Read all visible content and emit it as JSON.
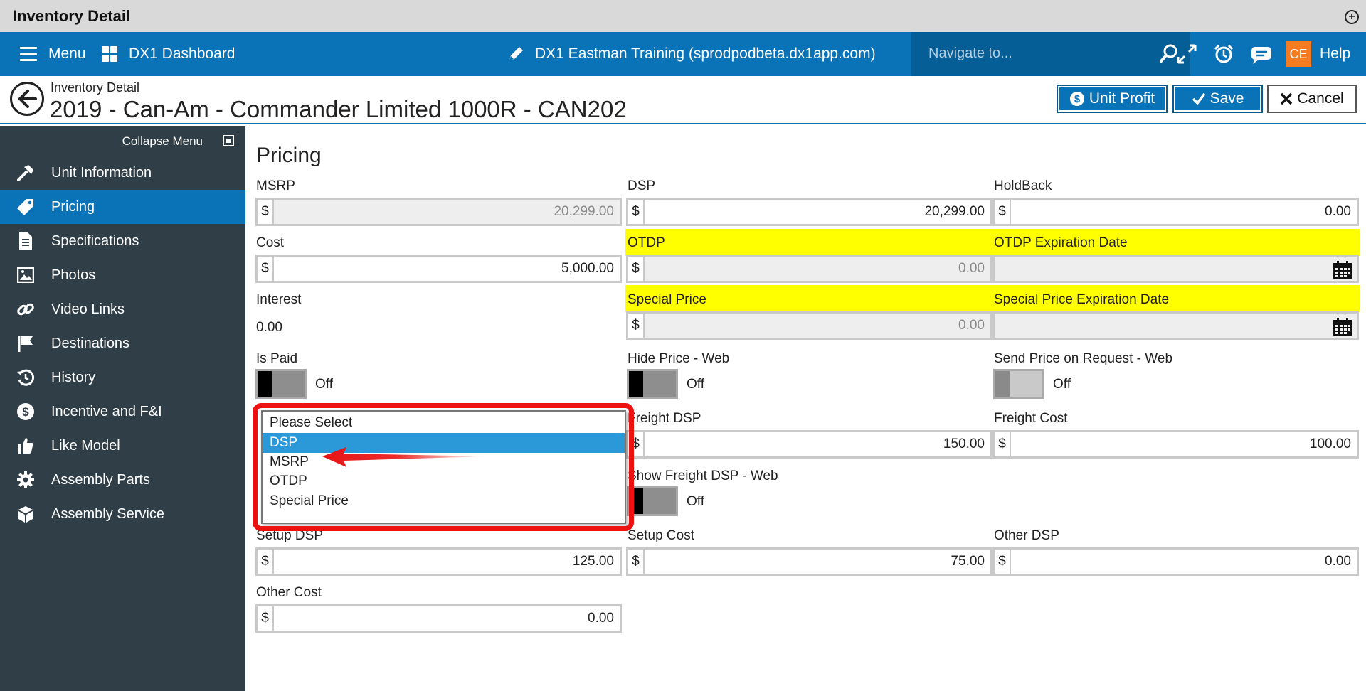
{
  "window": {
    "title": "Inventory Detail"
  },
  "topnav": {
    "menu_label": "Menu",
    "dashboard_label": "DX1 Dashboard",
    "site_label": "DX1 Eastman Training (sprodpodbeta.dx1app.com)",
    "search_placeholder": "Navigate to...",
    "user_initials": "CE",
    "help_label": "Help"
  },
  "header": {
    "breadcrumb": "Inventory Detail",
    "title": "2019 - Can-Am - Commander Limited 1000R - CAN202",
    "unit_profit_label": "Unit Profit",
    "save_label": "Save",
    "cancel_label": "Cancel"
  },
  "sidebar": {
    "collapse_label": "Collapse Menu",
    "items": [
      {
        "label": "Unit Information",
        "icon": "hammer-icon"
      },
      {
        "label": "Pricing",
        "icon": "tag-icon"
      },
      {
        "label": "Specifications",
        "icon": "document-icon"
      },
      {
        "label": "Photos",
        "icon": "image-icon"
      },
      {
        "label": "Video Links",
        "icon": "link-icon"
      },
      {
        "label": "Destinations",
        "icon": "flag-icon"
      },
      {
        "label": "History",
        "icon": "history-icon"
      },
      {
        "label": "Incentive and F&I",
        "icon": "dollar-circle-icon"
      },
      {
        "label": "Like Model",
        "icon": "thumbs-up-icon"
      },
      {
        "label": "Assembly Parts",
        "icon": "gear-icon"
      },
      {
        "label": "Assembly Service",
        "icon": "box-icon"
      }
    ],
    "active_index": 1
  },
  "pricing": {
    "section_title": "Pricing",
    "currency": "$",
    "msrp": {
      "label": "MSRP",
      "value": "20,299.00"
    },
    "dsp": {
      "label": "DSP",
      "value": "20,299.00"
    },
    "holdback": {
      "label": "HoldBack",
      "value": "0.00"
    },
    "cost": {
      "label": "Cost",
      "value": "5,000.00"
    },
    "otdp": {
      "label": "OTDP",
      "value": "0.00"
    },
    "otdp_expiration": {
      "label": "OTDP Expiration Date",
      "value": ""
    },
    "interest": {
      "label": "Interest",
      "value": "0.00"
    },
    "special_price": {
      "label": "Special Price",
      "value": "0.00"
    },
    "special_price_expiration": {
      "label": "Special Price Expiration Date",
      "value": ""
    },
    "is_paid": {
      "label": "Is Paid",
      "state": "Off"
    },
    "hide_price_web": {
      "label": "Hide Price - Web",
      "state": "Off"
    },
    "send_price_on_request": {
      "label": "Send Price on Request - Web",
      "state": "Off"
    },
    "freight_dsp": {
      "label": "Freight DSP",
      "value": "150.00"
    },
    "freight_cost": {
      "label": "Freight Cost",
      "value": "100.00"
    },
    "show_freight_dsp_web": {
      "label": "Show Freight DSP - Web",
      "state": "Off"
    },
    "setup_dsp": {
      "label": "Setup DSP",
      "value": "125.00"
    },
    "setup_cost": {
      "label": "Setup Cost",
      "value": "75.00"
    },
    "other_dsp": {
      "label": "Other DSP",
      "value": "0.00"
    },
    "other_cost": {
      "label": "Other Cost",
      "value": "0.00"
    },
    "price_select_options": [
      "Please Select",
      "DSP",
      "MSRP",
      "OTDP",
      "Special Price"
    ],
    "price_select_selected": "DSP"
  },
  "colors": {
    "nav_blue": "#0a73b7",
    "sidebar_bg": "#2f3e47",
    "highlight_yellow": "#ffff00",
    "annotation_red": "#ee1111",
    "user_badge": "#f47b20"
  }
}
